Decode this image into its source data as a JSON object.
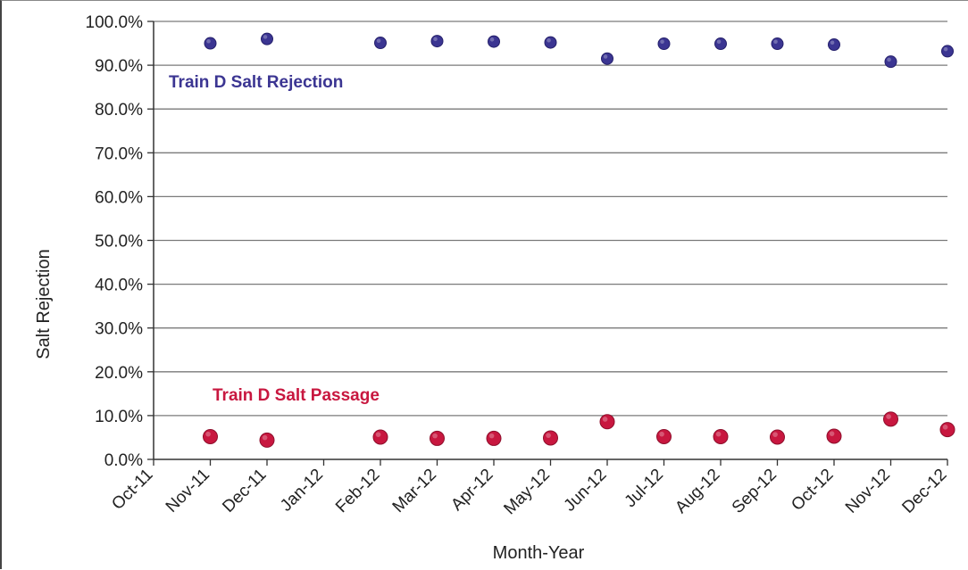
{
  "chart_data": {
    "type": "scatter",
    "xlabel": "Month-Year",
    "ylabel": "Salt Rejection",
    "categories": [
      "Oct-11",
      "Nov-11",
      "Dec-11",
      "Jan-12",
      "Feb-12",
      "Mar-12",
      "Apr-12",
      "May-12",
      "Jun-12",
      "Jul-12",
      "Aug-12",
      "Sep-12",
      "Oct-12",
      "Nov-12",
      "Dec-12"
    ],
    "yticks": [
      "0.0%",
      "10.0%",
      "20.0%",
      "30.0%",
      "40.0%",
      "50.0%",
      "60.0%",
      "70.0%",
      "80.0%",
      "90.0%",
      "100.0%"
    ],
    "ylim": [
      0,
      100
    ],
    "grid": true,
    "series": [
      {
        "name": "Train D Salt Rejection",
        "color": "#3b3592",
        "x": [
          "Nov-11",
          "Dec-11",
          "Feb-12",
          "Mar-12",
          "Apr-12",
          "May-12",
          "Jun-12",
          "Jul-12",
          "Aug-12",
          "Sep-12",
          "Oct-12",
          "Nov-12",
          "Dec-12"
        ],
        "values": [
          95.0,
          96.0,
          95.1,
          95.5,
          95.4,
          95.2,
          91.5,
          94.9,
          94.9,
          94.9,
          94.7,
          90.8,
          93.2
        ]
      },
      {
        "name": "Train D Salt Passage",
        "color": "#c8173f",
        "x": [
          "Nov-11",
          "Dec-11",
          "Feb-12",
          "Mar-12",
          "Apr-12",
          "May-12",
          "Jun-12",
          "Jul-12",
          "Aug-12",
          "Sep-12",
          "Oct-12",
          "Nov-12",
          "Dec-12"
        ],
        "values": [
          5.2,
          4.4,
          5.1,
          4.8,
          4.8,
          4.9,
          8.6,
          5.2,
          5.2,
          5.1,
          5.3,
          9.2,
          6.8
        ]
      }
    ]
  }
}
